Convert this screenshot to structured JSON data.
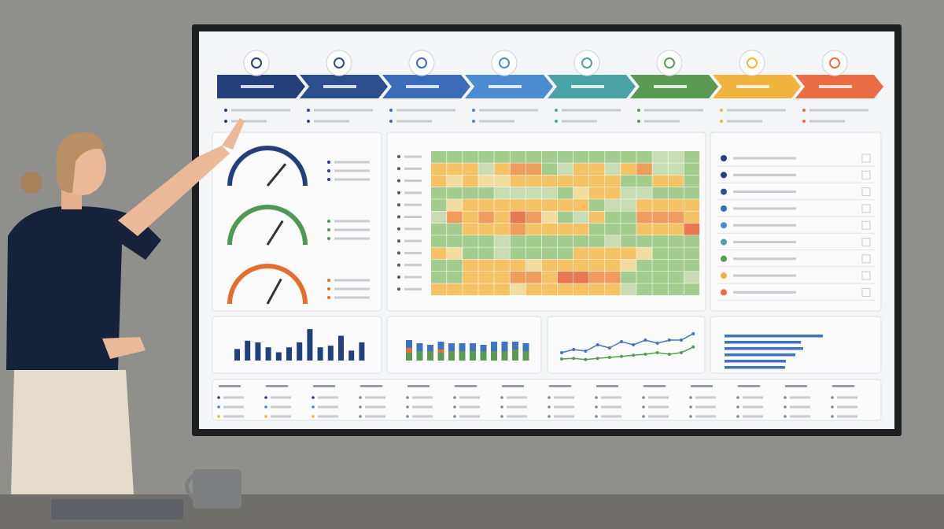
{
  "gauges": [
    {
      "value": 72,
      "color": "#24407a"
    },
    {
      "value": 68,
      "color": "#4f9a52"
    },
    {
      "value": 66,
      "color": "#e36e2e"
    }
  ],
  "heatmap": {
    "colors": [
      "#c8ddb3",
      "#a3cc8f",
      "#f3dca0",
      "#f6c266",
      "#ef9d5c",
      "#e7784f"
    ],
    "rows": [
      [
        1,
        1,
        1,
        1,
        1,
        1,
        1,
        1,
        1,
        1,
        1,
        1,
        1,
        1,
        0,
        0,
        1
      ],
      [
        3,
        3,
        3,
        0,
        3,
        4,
        4,
        1,
        0,
        3,
        3,
        0,
        3,
        4,
        0,
        0,
        1
      ],
      [
        3,
        2,
        3,
        2,
        2,
        3,
        3,
        3,
        3,
        3,
        3,
        3,
        1,
        1,
        3,
        3,
        1
      ],
      [
        1,
        1,
        1,
        1,
        0,
        0,
        0,
        0,
        1,
        2,
        3,
        3,
        0,
        0,
        1,
        1,
        1
      ],
      [
        1,
        2,
        3,
        3,
        3,
        3,
        3,
        3,
        3,
        3,
        1,
        0,
        0,
        3,
        3,
        3,
        3
      ],
      [
        0,
        4,
        3,
        4,
        3,
        5,
        4,
        2,
        1,
        0,
        3,
        1,
        1,
        4,
        4,
        4,
        3
      ],
      [
        1,
        1,
        3,
        3,
        3,
        4,
        3,
        3,
        3,
        3,
        1,
        1,
        1,
        3,
        3,
        3,
        5
      ],
      [
        1,
        1,
        1,
        1,
        0,
        1,
        1,
        1,
        1,
        1,
        1,
        0,
        1,
        1,
        1,
        1,
        1
      ],
      [
        3,
        2,
        1,
        1,
        0,
        1,
        1,
        1,
        1,
        3,
        3,
        3,
        3,
        2,
        1,
        1,
        1
      ],
      [
        1,
        1,
        3,
        3,
        3,
        3,
        2,
        3,
        3,
        3,
        3,
        3,
        2,
        1,
        1,
        1,
        1
      ],
      [
        1,
        1,
        3,
        3,
        3,
        4,
        4,
        3,
        5,
        5,
        4,
        4,
        1,
        1,
        1,
        1,
        0
      ],
      [
        3,
        3,
        3,
        3,
        3,
        2,
        3,
        3,
        3,
        3,
        3,
        3,
        0,
        1,
        1,
        1,
        1
      ]
    ]
  },
  "bar_chart": {
    "color": "#24407a",
    "values": [
      35,
      60,
      55,
      40,
      25,
      40,
      55,
      95,
      40,
      45,
      75,
      30,
      55
    ]
  },
  "stacked_chart": {
    "series": [
      {
        "color": "#5a9a55",
        "values": [
          25,
          30,
          30,
          25,
          30,
          30,
          30,
          30,
          30,
          30,
          35,
          30
        ]
      },
      {
        "color": "#e36e2e",
        "values": [
          15,
          0,
          0,
          10,
          0,
          0,
          0,
          0,
          0,
          0,
          0,
          0
        ]
      },
      {
        "color": "#3f74c1",
        "values": [
          25,
          25,
          20,
          25,
          25,
          25,
          25,
          20,
          30,
          30,
          25,
          25
        ]
      }
    ]
  },
  "line_chart": {
    "series": [
      {
        "color": "#3f74c1",
        "values": [
          30,
          40,
          35,
          55,
          45,
          65,
          55,
          70,
          60,
          70,
          70,
          90
        ]
      },
      {
        "color": "#5a9a55",
        "values": [
          10,
          12,
          8,
          12,
          15,
          18,
          22,
          25,
          30,
          25,
          30,
          48
        ]
      }
    ]
  },
  "hbar_chart": {
    "color": "#3f74c1",
    "values": [
      125,
      97,
      100,
      90,
      78,
      77
    ]
  }
}
